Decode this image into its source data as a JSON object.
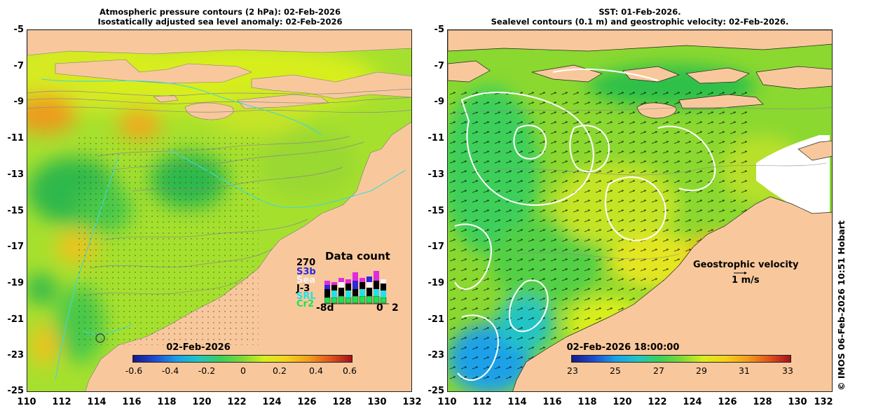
{
  "left_panel": {
    "title_line1": "Atmospheric pressure contours (2 hPa): 02-Feb-2026",
    "title_line2": "Isostatically adjusted sea level anomaly: 02-Feb-2026",
    "colorbar_date": "02-Feb-2026",
    "colorbar_labels": [
      "-0.6",
      "-0.4",
      "-0.2",
      "0",
      "0.2",
      "0.4",
      "0.6"
    ],
    "colorbar_colors": [
      "#16188a",
      "#1f4cd0",
      "#1aa0e8",
      "#22c4c4",
      "#3ccf5a",
      "#7fd83a",
      "#d8ee1e",
      "#f5d21e",
      "#f2a01e",
      "#e0561e",
      "#a8101a"
    ],
    "legend": {
      "title": "Data count",
      "max_count": "270",
      "missions": [
        {
          "name": "S3b",
          "color": "#2a2ad8"
        },
        {
          "name": "Sea",
          "color": "#f4f4f4"
        },
        {
          "name": "J-3",
          "color": "#000000"
        },
        {
          "name": "SRL",
          "color": "#22e0e8"
        },
        {
          "name": "Cr2",
          "color": "#22e050"
        }
      ],
      "top_mission_color": "#e02ae0",
      "axis_left": "-8d",
      "axis_right_1": "0",
      "axis_right_2": "2"
    }
  },
  "right_panel": {
    "title_line1": "SST: 01-Feb-2026.",
    "title_line2": "Sealevel contours (0.1 m) and geostrophic velocity: 02-Feb-2026.",
    "colorbar_date": "02-Feb-2026 18:00:00",
    "colorbar_labels": [
      "23",
      "25",
      "27",
      "29",
      "31",
      "33"
    ],
    "colorbar_colors": [
      "#16188a",
      "#1f4cd0",
      "#1aa0e8",
      "#22c4c4",
      "#3ccf5a",
      "#7fd83a",
      "#d8ee1e",
      "#f5d21e",
      "#f2a01e",
      "#e0561e",
      "#a8101a"
    ],
    "velocity_label": "Geostrophic velocity",
    "velocity_scale": "1 m/s"
  },
  "axes": {
    "y_ticks": [
      "-5",
      "-7",
      "-9",
      "-11",
      "-13",
      "-15",
      "-17",
      "-19",
      "-21",
      "-23",
      "-25"
    ],
    "x_ticks": [
      "110",
      "112",
      "114",
      "116",
      "118",
      "120",
      "122",
      "124",
      "126",
      "128",
      "130",
      "132"
    ]
  },
  "credit": "© IMOS 06-Feb-2026 10:51 Hobart",
  "colors": {
    "land": "#f8c89c",
    "ocean_green": "#7fd83a",
    "ocean_yellow": "#d8ee1e",
    "ocean_orange": "#f2a01e",
    "sst_blue": "#1aa0e8"
  }
}
